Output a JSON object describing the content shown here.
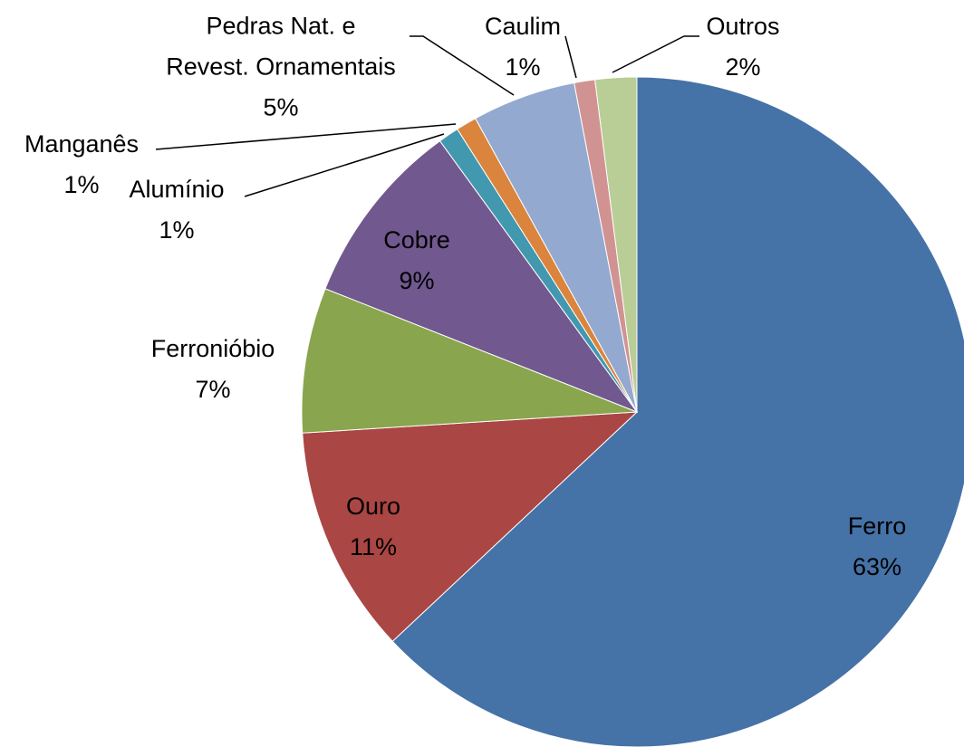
{
  "chart_data": {
    "type": "pie",
    "categories": [
      "Ferro",
      "Ouro",
      "Ferronióbio",
      "Cobre",
      "Alumínio",
      "Manganês",
      "Pedras Nat. e\nRevest. Ornamentais",
      "Caulim",
      "Outros"
    ],
    "values": [
      63,
      11,
      7,
      9,
      1,
      1,
      5,
      1,
      2
    ],
    "value_labels": [
      "63%",
      "11%",
      "7%",
      "9%",
      "1%",
      "1%",
      "5%",
      "1%",
      "2%"
    ],
    "colors": [
      "#4572a7",
      "#aa4643",
      "#89a54e",
      "#71588f",
      "#4198af",
      "#db843d",
      "#93a9cf",
      "#d19392",
      "#b9cd96"
    ]
  }
}
